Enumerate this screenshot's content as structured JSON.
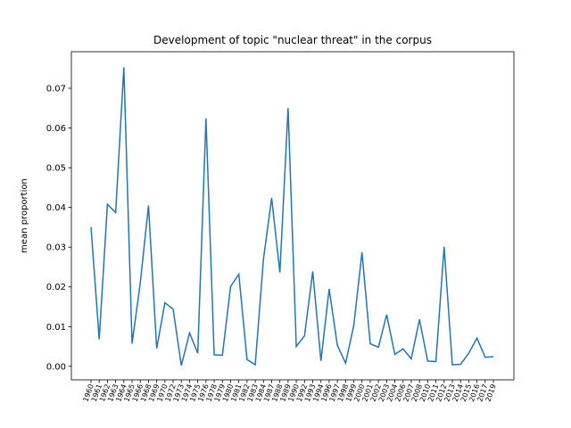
{
  "chart_data": {
    "type": "line",
    "title": "Development of topic \"nuclear threat\" in the corpus",
    "y_label": "mean proportion",
    "categories": [
      "1960",
      "1961",
      "1962",
      "1963",
      "1964",
      "1965",
      "1966",
      "1968",
      "1969",
      "1970",
      "1972",
      "1973",
      "1974",
      "1975",
      "1976",
      "1978",
      "1979",
      "1980",
      "1981",
      "1982",
      "1983",
      "1984",
      "1987",
      "1988",
      "1989",
      "1990",
      "1992",
      "1993",
      "1994",
      "1996",
      "1997",
      "1998",
      "1999",
      "2000",
      "2001",
      "2002",
      "2003",
      "2004",
      "2006",
      "2007",
      "2008",
      "2010",
      "2011",
      "2012",
      "2013",
      "2014",
      "2015",
      "2016",
      "2017",
      "2019"
    ],
    "series": [
      {
        "name": "nuclear threat",
        "color": "#1f77b4",
        "values": [
          0.0351,
          0.0068,
          0.0408,
          0.0387,
          0.0753,
          0.0057,
          0.021,
          0.0405,
          0.0045,
          0.016,
          0.0144,
          0.0002,
          0.0084,
          0.0033,
          0.0624,
          0.0029,
          0.0028,
          0.0201,
          0.0232,
          0.0017,
          0.0004,
          0.027,
          0.0424,
          0.0236,
          0.065,
          0.005,
          0.0077,
          0.0239,
          0.0014,
          0.0195,
          0.0053,
          0.0008,
          0.0103,
          0.0287,
          0.0057,
          0.0048,
          0.013,
          0.003,
          0.0044,
          0.0019,
          0.0118,
          0.0013,
          0.0012,
          0.0301,
          0.0004,
          0.0005,
          0.0033,
          0.0071,
          0.0023,
          0.0024
        ]
      }
    ],
    "ylim": [
      -0.0034,
      0.0792
    ],
    "yticks": [
      {
        "value": 0,
        "label": "0.00"
      },
      {
        "value": 0.01,
        "label": "0.01"
      },
      {
        "value": 0.02,
        "label": "0.02"
      },
      {
        "value": 0.03,
        "label": "0.03"
      },
      {
        "value": 0.04,
        "label": "0.04"
      },
      {
        "value": 0.05,
        "label": "0.05"
      },
      {
        "value": 0.06,
        "label": "0.06"
      },
      {
        "value": 0.07,
        "label": "0.07"
      }
    ],
    "grid": false
  }
}
